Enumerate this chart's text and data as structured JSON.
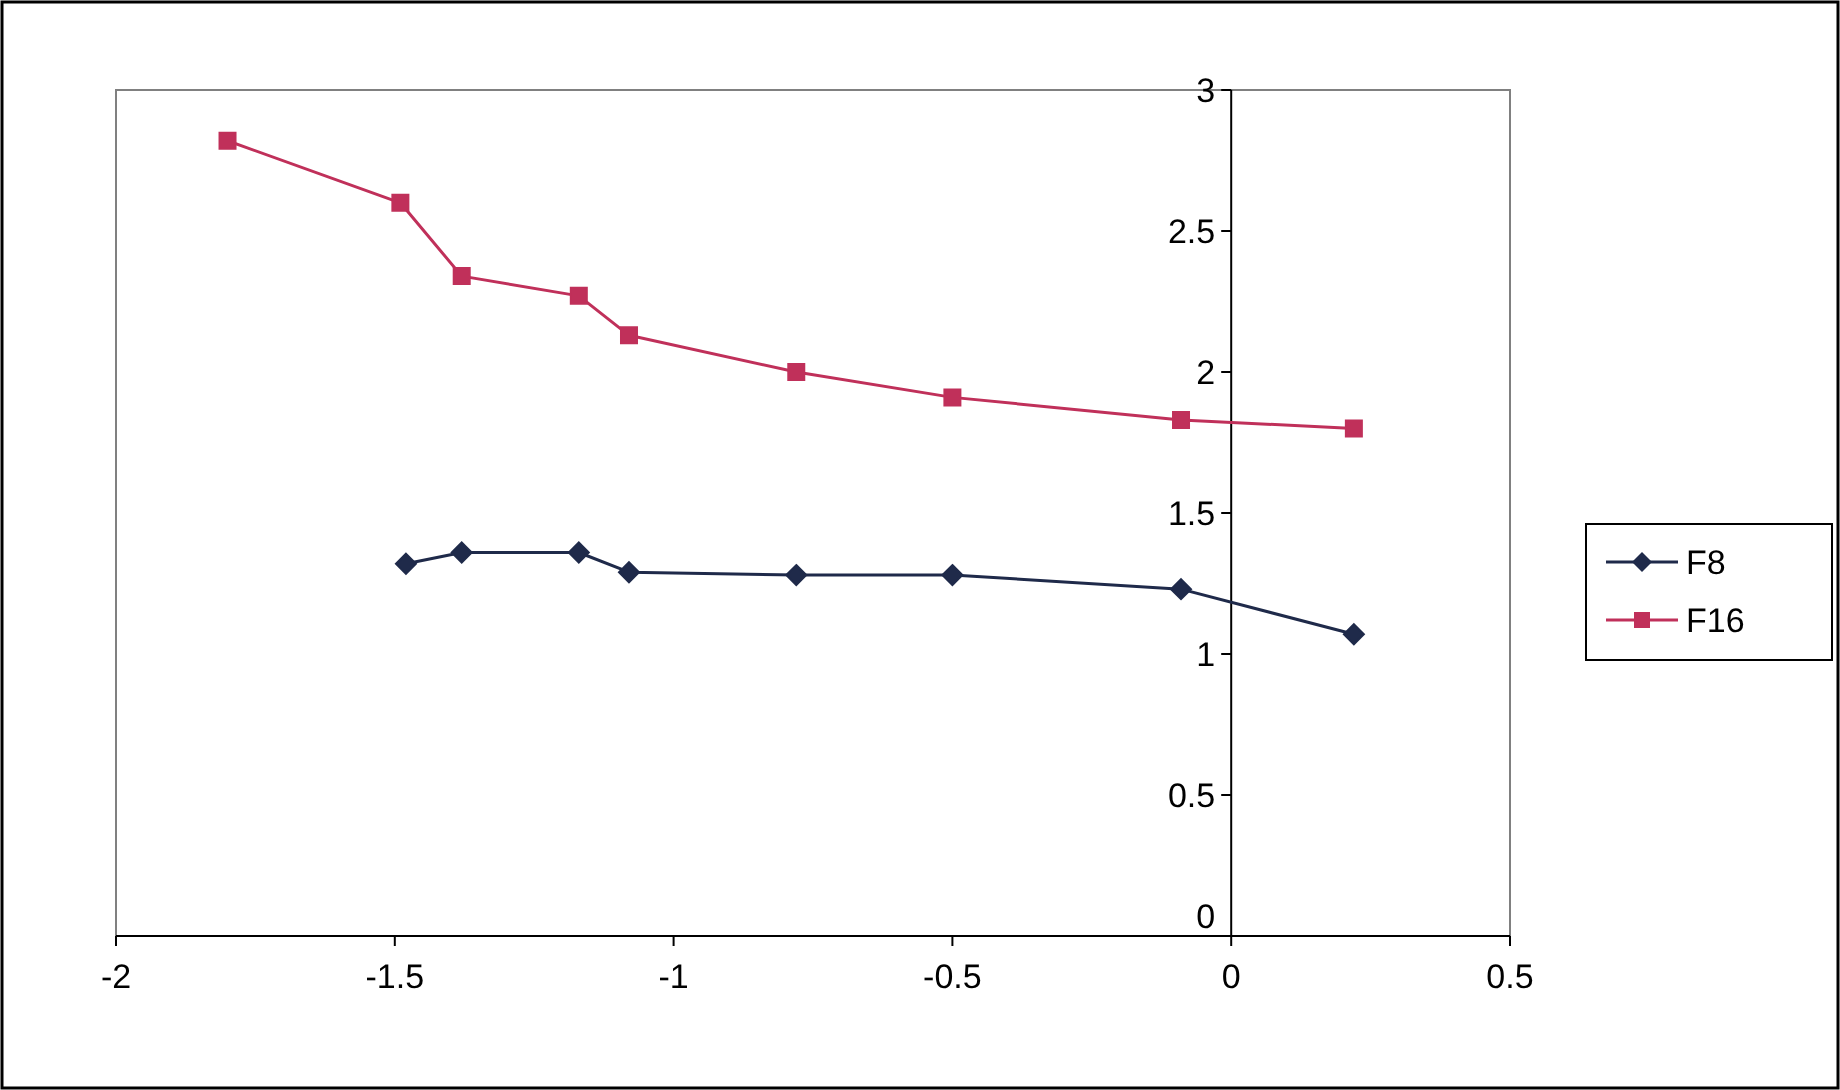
{
  "chart_data": {
    "type": "line",
    "xlim": [
      -2,
      0.5
    ],
    "xticks": [
      -2,
      -1.5,
      -1,
      -0.5,
      0,
      0.5
    ],
    "ylim": [
      0,
      3
    ],
    "yticks": [
      0,
      0.5,
      1,
      1.5,
      2,
      2.5,
      3
    ],
    "grid": false,
    "legend": "right",
    "line_style": "solid",
    "series": [
      {
        "name": "F8",
        "color": "#1f2a4a",
        "marker": "diamond",
        "x": [
          -1.48,
          -1.38,
          -1.17,
          -1.08,
          -0.78,
          -0.5,
          -0.09,
          0.22
        ],
        "values": [
          1.32,
          1.36,
          1.36,
          1.29,
          1.28,
          1.28,
          1.23,
          1.07
        ]
      },
      {
        "name": "F16",
        "color": "#c0305a",
        "marker": "square",
        "x": [
          -1.8,
          -1.49,
          -1.38,
          -1.17,
          -1.08,
          -0.78,
          -0.5,
          -0.09,
          0.22
        ],
        "values": [
          2.82,
          2.6,
          2.34,
          2.27,
          2.13,
          2.0,
          1.91,
          1.83,
          1.8
        ]
      }
    ]
  }
}
